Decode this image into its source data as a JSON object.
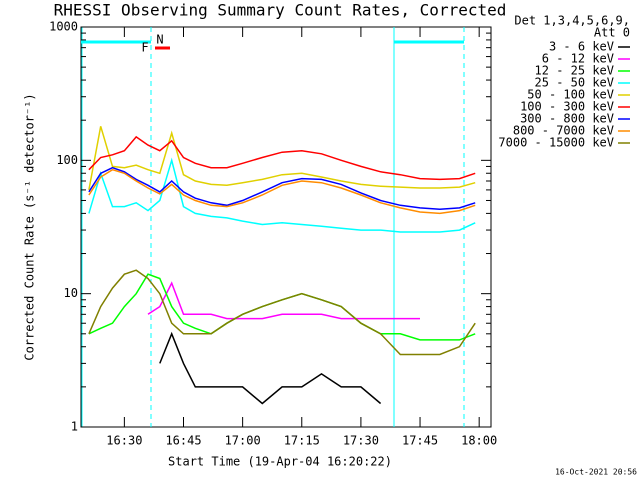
{
  "chart_data": {
    "type": "line",
    "title": "RHESSI Observing Summary Count Rates, Corrected",
    "y_label": "Corrected Count Rate (s⁻¹ detector⁻¹)",
    "x_label": "Start Time (19-Apr-04 16:20:22)",
    "legend_title": [
      "Det 1,3,4,5,6,9,",
      "Att 0"
    ],
    "footer": "16-Oct-2021 20:56",
    "annotations": [
      {
        "text": "F",
        "color": "#ff0000"
      },
      {
        "text": "N",
        "color": "#00ffff"
      }
    ],
    "log_y": true,
    "legend": "right",
    "xlim": [
      "16:19",
      "18:03"
    ],
    "xticks": [
      "16:30",
      "16:45",
      "17:00",
      "17:15",
      "17:30",
      "17:45",
      "18:00"
    ],
    "ylim": [
      1,
      1000
    ],
    "yticks": [
      1,
      10,
      100,
      1000
    ],
    "x": [
      "16:21",
      "16:24",
      "16:27",
      "16:30",
      "16:33",
      "16:36",
      "16:39",
      "16:42",
      "16:45",
      "16:48",
      "16:52",
      "16:56",
      "17:00",
      "17:05",
      "17:10",
      "17:15",
      "17:20",
      "17:25",
      "17:30",
      "17:35",
      "17:40",
      "17:45",
      "17:50",
      "17:55",
      "17:59"
    ],
    "series": [
      {
        "name": "3 - 6 keV",
        "color": "#000000",
        "values": [
          null,
          null,
          null,
          null,
          null,
          null,
          3,
          5,
          3,
          2,
          2,
          2,
          2,
          1.5,
          2,
          2,
          2.5,
          2,
          2,
          1.5,
          null,
          null,
          null,
          null,
          null
        ]
      },
      {
        "name": "6 - 12 keV",
        "color": "#ff00ff",
        "values": [
          null,
          null,
          null,
          null,
          null,
          7,
          8,
          12,
          7,
          7,
          7,
          6.5,
          6.5,
          6.5,
          7,
          7,
          7,
          6.5,
          6.5,
          6.5,
          6.5,
          6.5,
          null,
          null,
          null
        ]
      },
      {
        "name": "12 - 25 keV",
        "color": "#00ff00",
        "values": [
          5,
          5.5,
          6,
          8,
          10,
          14,
          13,
          8,
          6,
          5.5,
          5,
          6,
          7,
          8,
          9,
          10,
          9,
          8,
          6,
          5,
          5,
          4.5,
          4.5,
          4.5,
          5
        ]
      },
      {
        "name": "25 - 50 keV",
        "color": "#00ffff",
        "values": [
          40,
          80,
          45,
          45,
          48,
          42,
          50,
          100,
          45,
          40,
          38,
          37,
          35,
          33,
          34,
          33,
          32,
          31,
          30,
          30,
          29,
          29,
          29,
          30,
          34
        ]
      },
      {
        "name": "50 - 100 keV",
        "color": "#e0d000",
        "values": [
          60,
          180,
          90,
          88,
          92,
          85,
          80,
          160,
          78,
          70,
          66,
          65,
          68,
          72,
          78,
          80,
          75,
          70,
          66,
          64,
          63,
          62,
          62,
          63,
          68
        ]
      },
      {
        "name": "100 - 300 keV",
        "color": "#ff0000",
        "values": [
          85,
          105,
          110,
          118,
          150,
          130,
          118,
          140,
          105,
          95,
          88,
          88,
          95,
          105,
          115,
          118,
          112,
          100,
          90,
          82,
          78,
          73,
          72,
          73,
          80
        ]
      },
      {
        "name": "300 - 800 keV",
        "color": "#0000ff",
        "values": [
          58,
          80,
          88,
          82,
          72,
          65,
          58,
          70,
          58,
          52,
          48,
          46,
          50,
          58,
          68,
          73,
          72,
          66,
          57,
          50,
          46,
          44,
          43,
          44,
          48
        ]
      },
      {
        "name": "800 - 7000 keV",
        "color": "#ff8c00",
        "values": [
          55,
          75,
          85,
          80,
          70,
          62,
          56,
          66,
          55,
          50,
          46,
          45,
          48,
          55,
          65,
          70,
          68,
          62,
          55,
          48,
          44,
          41,
          40,
          42,
          46
        ]
      },
      {
        "name": "7000 - 15000 keV",
        "color": "#808000",
        "values": [
          5,
          8,
          11,
          14,
          15,
          13,
          10,
          6,
          5,
          5,
          5,
          6,
          7,
          8,
          9,
          10,
          9,
          8,
          6,
          5,
          3.5,
          3.5,
          3.5,
          4,
          6
        ]
      }
    ]
  }
}
